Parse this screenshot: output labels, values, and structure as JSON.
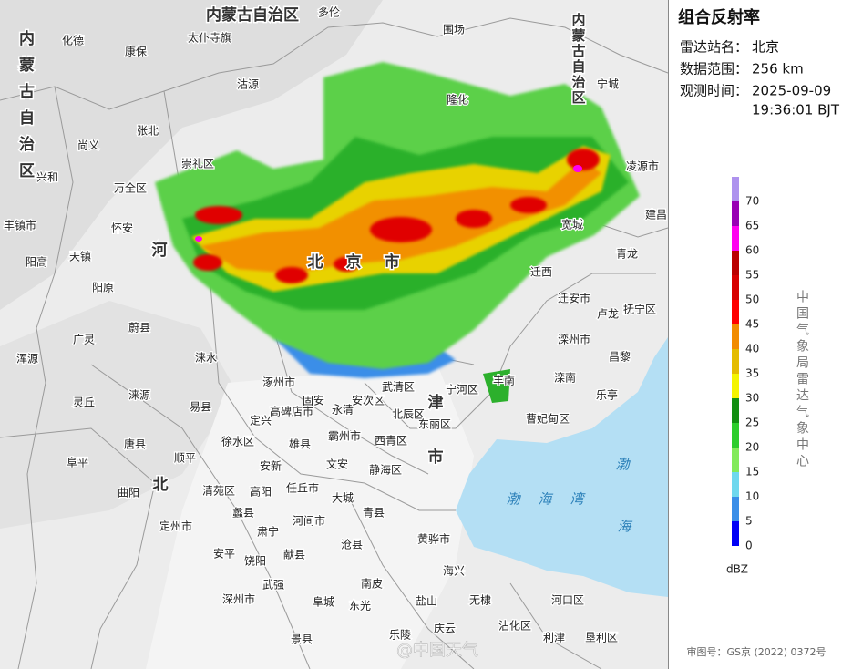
{
  "panel": {
    "title": "组合反射率",
    "rows": [
      {
        "label": "雷达站名：",
        "value": "北京"
      },
      {
        "label": "数据范围：",
        "value": "256 km"
      },
      {
        "label": "观测时间：",
        "value": "2025-09-09",
        "value2": "19:36:01 BJT"
      }
    ],
    "legend": {
      "unit": "dBZ",
      "ticks": [
        0,
        5,
        10,
        15,
        20,
        25,
        30,
        35,
        40,
        45,
        50,
        55,
        60,
        65,
        70
      ],
      "colors": [
        "#0000f6",
        "#3a8ee8",
        "#6fd8ee",
        "#82ea5a",
        "#2ccd2c",
        "#118f11",
        "#f4f400",
        "#e4bc00",
        "#f28c00",
        "#ff0000",
        "#d80000",
        "#bb0000",
        "#ff00f0",
        "#9800b4",
        "#ae92ee"
      ]
    },
    "source": "中国气象局雷达气象中心",
    "footer": "审图号：GS京 (2022) 0372号"
  },
  "map": {
    "watermark": "@中国天气",
    "labels": [
      "内蒙古自治区",
      "多伦",
      "化德",
      "康保",
      "太仆寺旗",
      "围场",
      "尚义",
      "张北",
      "沽源",
      "隆化",
      "崇礼区",
      "万全区",
      "兴和",
      "怀安",
      "天镇",
      "阳高",
      "阳原",
      "丰镇市",
      "蔚县",
      "广灵",
      "浑源",
      "灵丘",
      "涞源",
      "涞水",
      "易县",
      "涿州市",
      "定兴",
      "高碑店市",
      "固安",
      "永清",
      "安次区",
      "武清区",
      "宁河区",
      "北辰区",
      "东丽区",
      "西青区",
      "霸州市",
      "雄县",
      "徐水区",
      "唐县",
      "顺平",
      "阜平",
      "安新",
      "文安",
      "静海区",
      "任丘市",
      "高阳",
      "清苑区",
      "大城",
      "曲阳",
      "定州市",
      "蠡县",
      "肃宁",
      "河间市",
      "青县",
      "黄骅市",
      "沧县",
      "献县",
      "安平",
      "饶阳",
      "海兴",
      "南皮",
      "武强",
      "盐山",
      "无棣",
      "东光",
      "阜城",
      "深州市",
      "景县",
      "乐陵",
      "庆云",
      "沾化区",
      "利津",
      "垦利区",
      "河口区",
      "曹妃甸区",
      "乐亭",
      "滦南",
      "丰南",
      "昌黎",
      "滦州市",
      "迁西",
      "迁安市",
      "卢龙",
      "抚宁区",
      "青龙",
      "宽城",
      "建昌",
      "凌源市",
      "宁城",
      "北",
      "京",
      "市",
      "河",
      "北",
      "津",
      "市",
      "渤",
      "海",
      "湾",
      "渤",
      "海",
      "内蒙古自治区",
      "内蒙古自治区"
    ]
  }
}
